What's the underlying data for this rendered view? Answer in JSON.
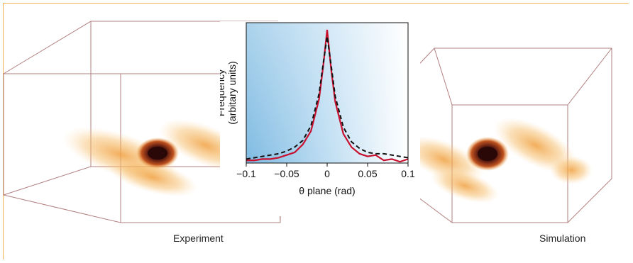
{
  "figure": {
    "caption_left": "Experiment",
    "caption_right": "Simulation"
  },
  "colors": {
    "frame_border": "#f0b450",
    "box_edge": "#b38080",
    "blob_outer": "#f5a23a",
    "blob_core": "#3b0f0f",
    "experiment_line": "#c8102e",
    "simulation_line": "#111111",
    "inset_bg_blue": "#8fc5e8"
  },
  "chart_data": {
    "type": "line",
    "xlabel": "θ plane (rad)",
    "ylabel": "Frequency",
    "ylabel_sub": "(arbitary units)",
    "xlim": [
      -0.1,
      0.1
    ],
    "xticks": [
      -0.1,
      -0.05,
      0,
      0.05,
      0.1
    ],
    "xtick_labels": [
      "−0.1",
      "−0.05",
      "0",
      "0.05",
      "0.1"
    ],
    "ylim": [
      0,
      1.0
    ],
    "series": [
      {
        "style": "solid",
        "x": [
          -0.1,
          -0.09,
          -0.08,
          -0.07,
          -0.06,
          -0.05,
          -0.04,
          -0.03,
          -0.02,
          -0.01,
          -0.005,
          0,
          0.005,
          0.01,
          0.02,
          0.03,
          0.04,
          0.05,
          0.06,
          0.07,
          0.08,
          0.09,
          0.1
        ],
        "y": [
          0.02,
          0.02,
          0.03,
          0.03,
          0.04,
          0.06,
          0.08,
          0.14,
          0.24,
          0.48,
          0.72,
          1.0,
          0.7,
          0.46,
          0.22,
          0.12,
          0.07,
          0.05,
          0.06,
          0.02,
          0.03,
          0.01,
          0.03
        ]
      },
      {
        "style": "dashed",
        "x": [
          -0.1,
          -0.09,
          -0.08,
          -0.07,
          -0.06,
          -0.05,
          -0.04,
          -0.03,
          -0.02,
          -0.01,
          -0.005,
          0,
          0.005,
          0.01,
          0.02,
          0.03,
          0.04,
          0.05,
          0.06,
          0.07,
          0.08,
          0.09,
          0.1
        ],
        "y": [
          0.03,
          0.04,
          0.05,
          0.06,
          0.07,
          0.09,
          0.12,
          0.17,
          0.28,
          0.52,
          0.74,
          0.95,
          0.73,
          0.5,
          0.27,
          0.16,
          0.11,
          0.08,
          0.07,
          0.07,
          0.06,
          0.05,
          0.04
        ]
      }
    ]
  }
}
